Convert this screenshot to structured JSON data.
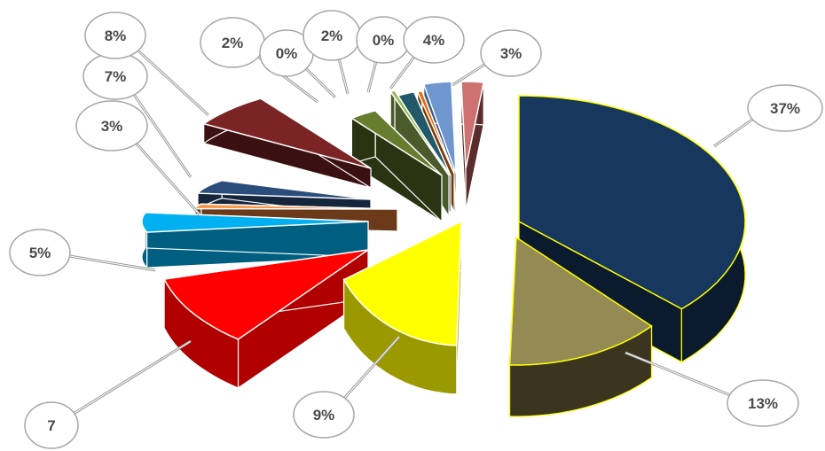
{
  "chart_data": {
    "type": "pie",
    "style": "3d-exploded",
    "title": "",
    "legend": "none",
    "slices": [
      {
        "label": "37%",
        "value": 37,
        "top_color": "#17375e",
        "side_color": "#0b1a2c",
        "outline": "#ffff00"
      },
      {
        "label": "13%",
        "value": 13,
        "top_color": "#948a54",
        "side_color": "#3b3520",
        "outline": "#ffff00"
      },
      {
        "label": "9%",
        "value": 9,
        "top_color": "#ffff00",
        "side_color": "#9a9a00",
        "outline": "#ffffff"
      },
      {
        "label": "7",
        "value": 7,
        "top_color": "#ff0000",
        "side_color": "#b00000",
        "outline": "#ffffff"
      },
      {
        "label": "5%",
        "value": 5,
        "top_color": "#00b0f0",
        "side_color": "#005f80",
        "outline": "#ffffff"
      },
      {
        "label": "3%",
        "value": 3,
        "top_color": "#f79646",
        "side_color": "#6b3a1a",
        "outline": "#ffffff"
      },
      {
        "label": "7%",
        "value": 7,
        "top_color": "#2a4d7c",
        "side_color": "#14253c",
        "outline": "#ffffff"
      },
      {
        "label": "8%",
        "value": 8,
        "top_color": "#7b2425",
        "side_color": "#3a1011",
        "outline": "#ffffff"
      },
      {
        "label": "2%",
        "value": 2,
        "top_color": "#667c2e",
        "side_color": "#2a3412",
        "outline": "#ffffff"
      },
      {
        "label": "0%",
        "value": 0,
        "top_color": "#9bbb59",
        "side_color": "#4a5a2a",
        "outline": "#ffffff"
      },
      {
        "label": "2%",
        "value": 2,
        "top_color": "#215968",
        "side_color": "#10303a",
        "outline": "#ffffff"
      },
      {
        "label": "0%",
        "value": 0,
        "top_color": "#e46c0a",
        "side_color": "#7a3a05",
        "outline": "#ffffff"
      },
      {
        "label": "4%",
        "value": 4,
        "top_color": "#6f96cf",
        "side_color": "#3a5a8a",
        "outline": "#ffffff"
      },
      {
        "label": "3%",
        "value": 3,
        "top_color": "#cd7171",
        "side_color": "#5a2c2c",
        "outline": "#ffffff"
      }
    ]
  }
}
